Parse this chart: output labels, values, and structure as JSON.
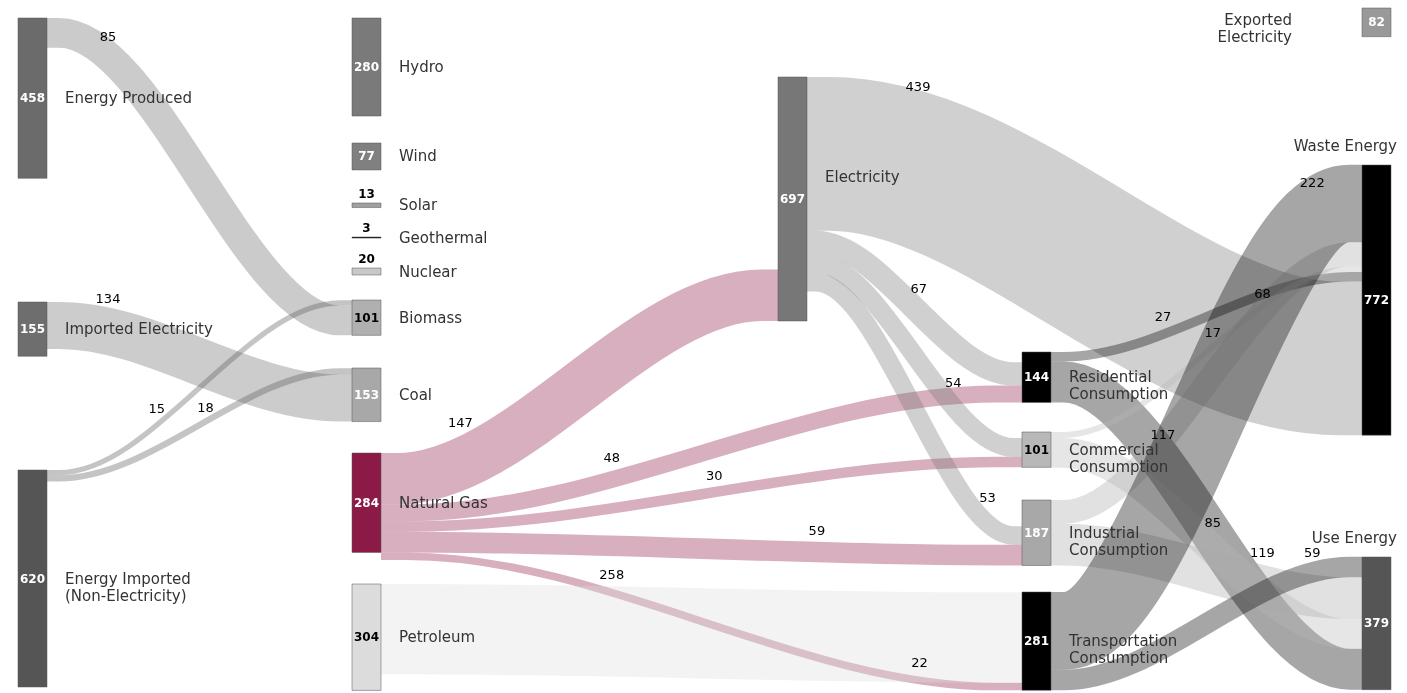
{
  "chart_data": {
    "type": "other",
    "data_labels": true,
    "categories": [
      "Energy Produced",
      "Imported Electricity",
      "Energy Imported\n(Non-Electricity)",
      "Hydro",
      "Wind",
      "Solar",
      "Geothermal",
      "Nuclear",
      "Biomass",
      "Coal",
      "Natural Gas",
      "Petroleum",
      "Electricity",
      "Residential\nConsumption",
      "Commercial\nConsumption",
      "Industrial\nConsumption",
      "Transportation\nConsumption",
      "Exported\nElectricity",
      "Waste Energy",
      "Use Energy"
    ],
    "values": [
      458,
      155,
      620,
      280,
      77,
      13,
      3,
      20,
      101,
      153,
      284,
      304,
      697,
      144,
      101,
      187,
      281,
      82,
      772,
      379
    ],
    "colors": [
      "#6b6b6b",
      "#6e6e6e",
      "#555555",
      "#7a7a7a",
      "#808080",
      "#a0a0a0",
      "#000000",
      "#c8c8c8",
      "#b0b0b0",
      "#a8a8a8",
      "#8b1a46",
      "#dcdcdc",
      "#777777",
      "#000000",
      "#b8b8b8",
      "#a8a8a8",
      "#000000",
      "#999999",
      "#000000",
      "#555555"
    ],
    "annotations": [
      {
        "text": "85",
        "x": "Energy Produced",
        "y": "Biomass"
      },
      {
        "text": "134",
        "x": "Imported Electricity",
        "y": "Coal"
      },
      {
        "text": "15",
        "x": "Energy Imported\n(Non-Electricity)",
        "y": "Biomass"
      },
      {
        "text": "18",
        "x": "Energy Imported\n(Non-Electricity)",
        "y": "Coal"
      },
      {
        "text": "147",
        "x": "Natural Gas",
        "y": "Electricity"
      },
      {
        "text": "48",
        "x": "Natural Gas",
        "y": "Residential\nConsumption"
      },
      {
        "text": "30",
        "x": "Natural Gas",
        "y": "Commercial\nConsumption"
      },
      {
        "text": "59",
        "x": "Natural Gas",
        "y": "Industrial\nConsumption"
      },
      {
        "text": "22",
        "x": "Natural Gas",
        "y": "Transportation\nConsumption"
      },
      {
        "text": "258",
        "x": "Petroleum",
        "y": "Transportation\nConsumption"
      },
      {
        "text": "439",
        "x": "Electricity",
        "y": "Waste Energy"
      },
      {
        "text": "67",
        "x": "Electricity",
        "y": "Residential\nConsumption"
      },
      {
        "text": "54",
        "x": "Electricity",
        "y": "Commercial\nConsumption"
      },
      {
        "text": "53",
        "x": "Electricity",
        "y": "Industrial\nConsumption"
      },
      {
        "text": "27",
        "x": "Residential\nConsumption",
        "y": "Waste Energy"
      },
      {
        "text": "117",
        "x": "Residential\nConsumption",
        "y": "Use Energy"
      },
      {
        "text": "17",
        "x": "Commercial\nConsumption",
        "y": "Waste Energy"
      },
      {
        "text": "85",
        "x": "Commercial\nConsumption",
        "y": "Use Energy"
      },
      {
        "text": "68",
        "x": "Industrial\nConsumption",
        "y": "Waste Energy"
      },
      {
        "text": "119",
        "x": "Industrial\nConsumption",
        "y": "Use Energy"
      },
      {
        "text": "222",
        "x": "Transportation\nConsumption",
        "y": "Waste Energy"
      },
      {
        "text": "59",
        "x": "Transportation\nConsumption",
        "y": "Use Energy"
      }
    ]
  }
}
